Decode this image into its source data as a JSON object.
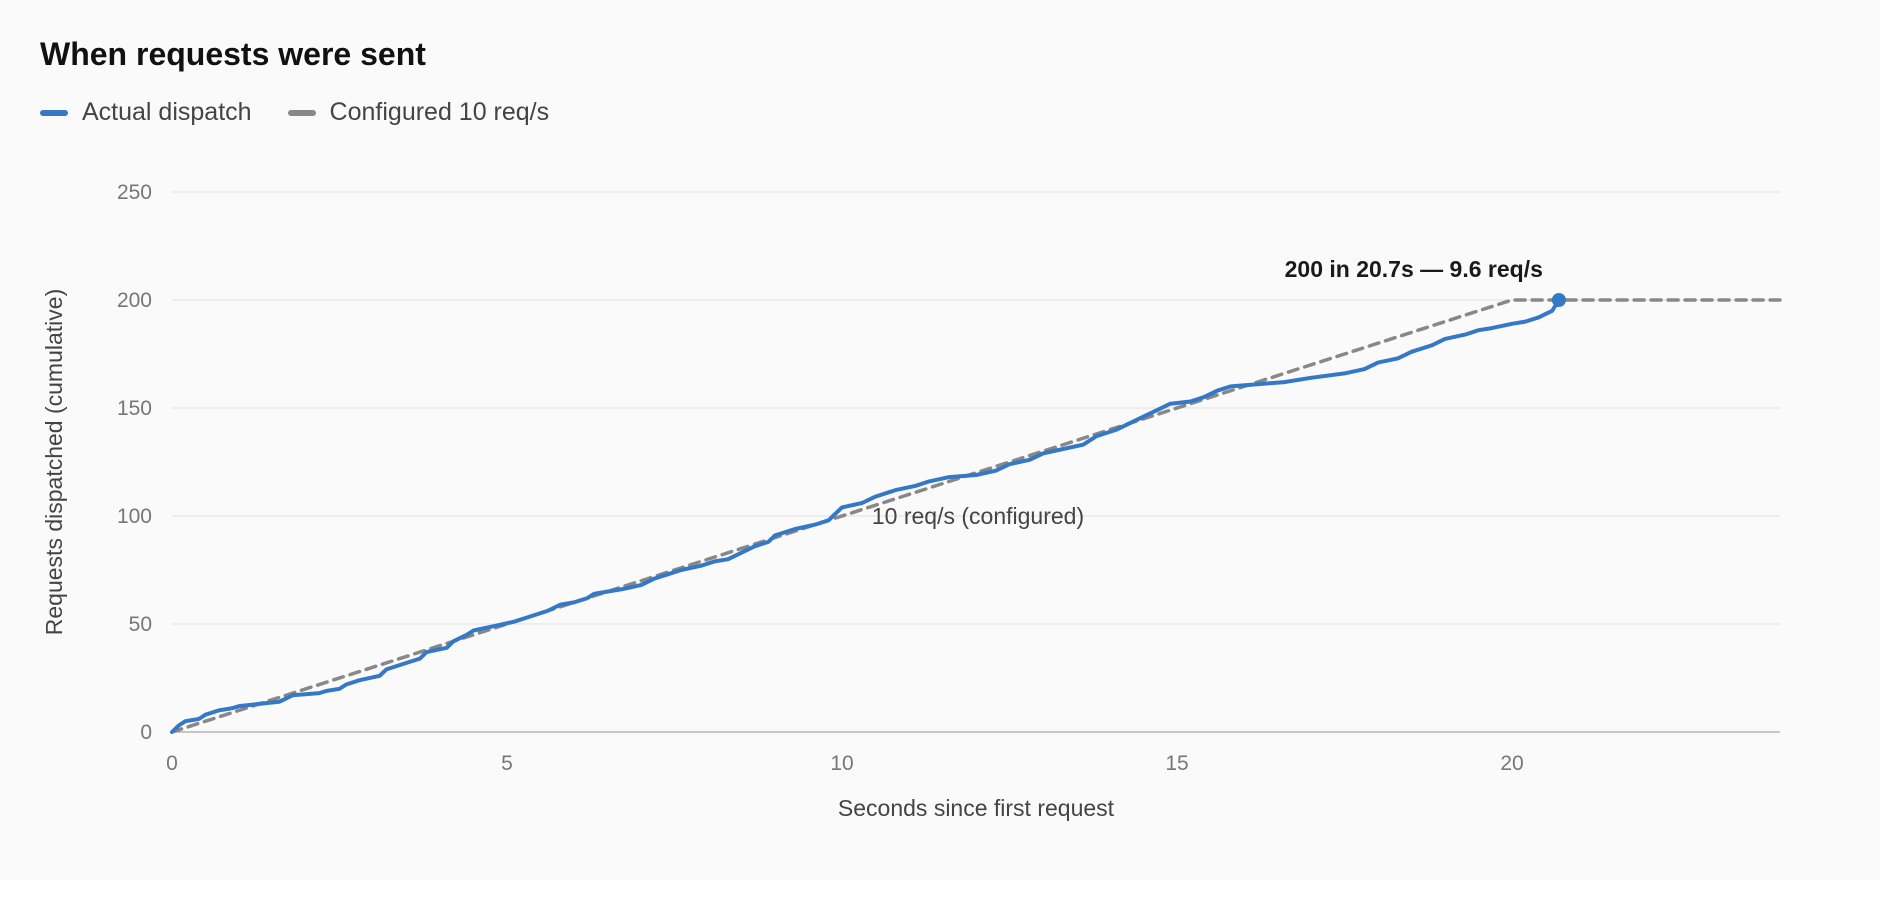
{
  "page": {
    "title": "When requests were sent"
  },
  "chart_data": {
    "type": "line",
    "title": "When requests were sent",
    "xlabel": "Seconds since first request",
    "ylabel": "Requests dispatched (cumulative)",
    "xlim": [
      0,
      24
    ],
    "ylim": [
      0,
      250
    ],
    "x_ticks": [
      0,
      5,
      10,
      15,
      20
    ],
    "y_ticks": [
      0,
      50,
      100,
      150,
      200,
      250
    ],
    "grid": "horizontal",
    "legend_position": "top-left",
    "series": [
      {
        "name": "Actual dispatch",
        "color": "#3478c6",
        "style": "solid",
        "points": [
          [
            0,
            0
          ],
          [
            0.1,
            3
          ],
          [
            0.2,
            5
          ],
          [
            0.4,
            6
          ],
          [
            0.5,
            8
          ],
          [
            0.7,
            10
          ],
          [
            0.9,
            11
          ],
          [
            1.0,
            12
          ],
          [
            1.3,
            13
          ],
          [
            1.6,
            14
          ],
          [
            1.8,
            17
          ],
          [
            2.2,
            18
          ],
          [
            2.3,
            19
          ],
          [
            2.5,
            20
          ],
          [
            2.6,
            22
          ],
          [
            2.8,
            24
          ],
          [
            3.1,
            26
          ],
          [
            3.2,
            29
          ],
          [
            3.5,
            32
          ],
          [
            3.7,
            34
          ],
          [
            3.8,
            37
          ],
          [
            4.1,
            39
          ],
          [
            4.2,
            42
          ],
          [
            4.4,
            45
          ],
          [
            4.5,
            47
          ],
          [
            4.8,
            49
          ],
          [
            5.1,
            51
          ],
          [
            5.3,
            53
          ],
          [
            5.6,
            56
          ],
          [
            5.8,
            59
          ],
          [
            6.0,
            60
          ],
          [
            6.2,
            62
          ],
          [
            6.3,
            64
          ],
          [
            6.7,
            66
          ],
          [
            7.0,
            68
          ],
          [
            7.2,
            71
          ],
          [
            7.4,
            73
          ],
          [
            7.6,
            75
          ],
          [
            7.9,
            77
          ],
          [
            8.1,
            79
          ],
          [
            8.3,
            80
          ],
          [
            8.5,
            83
          ],
          [
            8.7,
            86
          ],
          [
            8.9,
            88
          ],
          [
            9.0,
            91
          ],
          [
            9.3,
            94
          ],
          [
            9.6,
            96
          ],
          [
            9.8,
            98
          ],
          [
            9.9,
            101
          ],
          [
            10.0,
            104
          ],
          [
            10.3,
            106
          ],
          [
            10.5,
            109
          ],
          [
            10.8,
            112
          ],
          [
            11.1,
            114
          ],
          [
            11.3,
            116
          ],
          [
            11.6,
            118
          ],
          [
            12.0,
            119
          ],
          [
            12.3,
            121
          ],
          [
            12.5,
            124
          ],
          [
            12.8,
            126
          ],
          [
            13.0,
            129
          ],
          [
            13.3,
            131
          ],
          [
            13.6,
            133
          ],
          [
            13.8,
            137
          ],
          [
            14.1,
            140
          ],
          [
            14.3,
            143
          ],
          [
            14.5,
            146
          ],
          [
            14.7,
            149
          ],
          [
            14.9,
            152
          ],
          [
            15.2,
            153
          ],
          [
            15.4,
            155
          ],
          [
            15.6,
            158
          ],
          [
            15.8,
            160
          ],
          [
            16.2,
            161
          ],
          [
            16.6,
            162
          ],
          [
            17.0,
            164
          ],
          [
            17.5,
            166
          ],
          [
            17.8,
            168
          ],
          [
            18.0,
            171
          ],
          [
            18.3,
            173
          ],
          [
            18.5,
            176
          ],
          [
            18.8,
            179
          ],
          [
            19.0,
            182
          ],
          [
            19.3,
            184
          ],
          [
            19.5,
            186
          ],
          [
            19.7,
            187
          ],
          [
            20.0,
            189
          ],
          [
            20.2,
            190
          ],
          [
            20.4,
            192
          ],
          [
            20.6,
            195
          ],
          [
            20.7,
            200
          ]
        ]
      },
      {
        "name": "Configured 10 req/s",
        "color": "#888888",
        "style": "dashed",
        "points": [
          [
            0,
            0
          ],
          [
            20,
            200
          ],
          [
            24,
            200
          ]
        ]
      }
    ],
    "annotations": [
      {
        "text": "10 req/s (configured)",
        "x": 12,
        "y": 100
      },
      {
        "text": "200 in 20.7s — 9.6 req/s",
        "x": 20.7,
        "y": 200
      }
    ]
  }
}
